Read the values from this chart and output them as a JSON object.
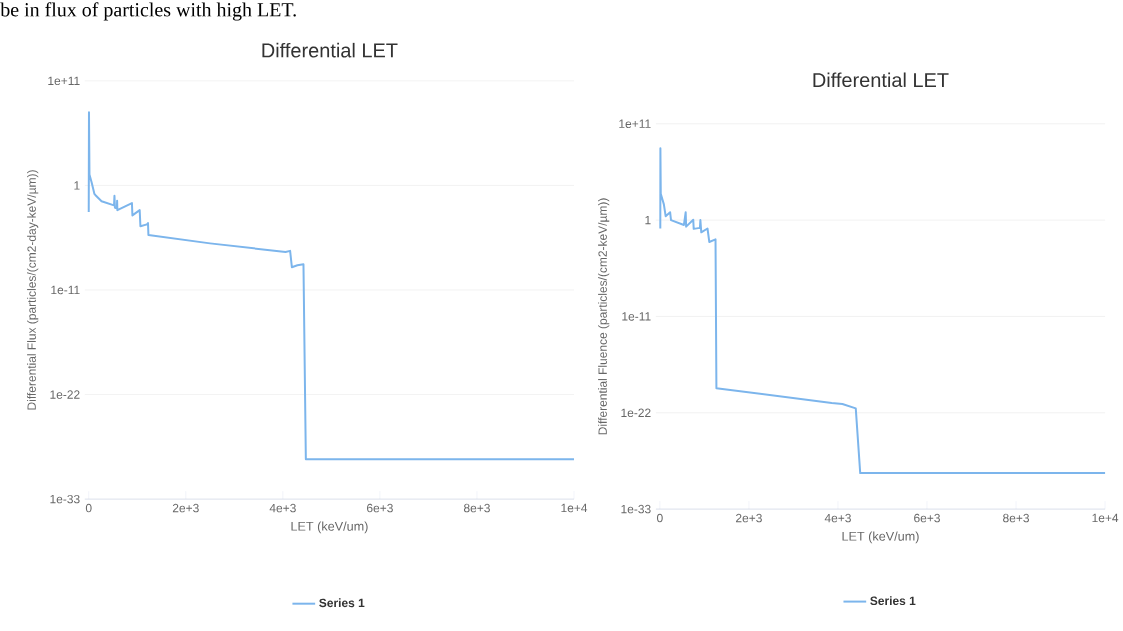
{
  "chart_data": [
    {
      "type": "line",
      "title": "Differential LET",
      "xlabel": "LET (keV/um)",
      "ylabel": "Differential Flux (particles/(cm2-day-keV/µm))",
      "log": "y",
      "grid": "y",
      "legend": "bottom",
      "marker": "none",
      "annotations": [
        "be in flux of particles with high LET."
      ],
      "xlim": [
        -80,
        10000
      ],
      "ylim": [
        1e-33,
        100000000000.0
      ],
      "xticks": [
        0,
        {
          "value": 2000,
          "label": "2e+3"
        },
        {
          "value": 4000,
          "label": "4e+3"
        },
        {
          "value": 6000,
          "label": "6e+3"
        },
        {
          "value": 8000,
          "label": "8e+3"
        },
        {
          "value": 10000,
          "label": "1e+4"
        }
      ],
      "yticks": [
        {
          "value": 1e-33,
          "label": "1e-33"
        },
        {
          "value": 1e-22,
          "label": "1e-22"
        },
        {
          "value": 1e-11,
          "label": "1e-11"
        },
        1,
        {
          "value": 100000000000.0,
          "label": "1e+11"
        }
      ],
      "x": [
        0,
        5,
        15,
        60,
        116,
        135,
        264,
        521,
        530,
        540,
        580,
        585,
        590,
        890,
        900,
        1050,
        1065,
        1200,
        1221,
        1230,
        2500,
        4056,
        4150,
        4186,
        4300,
        4425,
        4474,
        10000
      ],
      "series": [
        {
          "name": "Series 1",
          "color": "#7cb5ec",
          "values": [
            0.0016,
            50000000.0,
            14,
            2,
            0.13,
            0.1,
            0.022,
            0.008,
            0.08,
            0.0045,
            0.004,
            0.025,
            0.0025,
            0.014,
            0.0007,
            0.0025,
            5e-05,
            8e-05,
            0.00011,
            6e-06,
            8e-07,
            1e-07,
            1.3e-07,
            2.5e-09,
            4e-09,
            5e-09,
            1.6e-29,
            1.6e-29
          ]
        }
      ]
    },
    {
      "type": "line",
      "title": "Differential LET",
      "xlabel": "LET (keV/um)",
      "ylabel": "Differential Fluence (particles/(cm2-keV/µm))",
      "log": "y",
      "grid": "y",
      "legend": "bottom",
      "marker": "none",
      "xlim": [
        -90,
        10000
      ],
      "ylim": [
        1e-33,
        100000000000.0
      ],
      "xticks": [
        0,
        {
          "value": 2000,
          "label": "2e+3"
        },
        {
          "value": 4000,
          "label": "4e+3"
        },
        {
          "value": 6000,
          "label": "6e+3"
        },
        {
          "value": 8000,
          "label": "8e+3"
        },
        {
          "value": 10000,
          "label": "1e+4"
        }
      ],
      "yticks": [
        {
          "value": 1e-33,
          "label": "1e-33"
        },
        {
          "value": 1e-22,
          "label": "1e-22"
        },
        {
          "value": 1e-11,
          "label": "1e-11"
        },
        1,
        {
          "value": 100000000000.0,
          "label": "1e+11"
        }
      ],
      "x": [
        10,
        12,
        20,
        90,
        130,
        230,
        250,
        540,
        580,
        590,
        750,
        760,
        900,
        910,
        930,
        1070,
        1110,
        1250,
        1270,
        3860,
        4100,
        4400,
        4500,
        10000
      ],
      "series": [
        {
          "name": "Series 1",
          "color": "#7cb5ec",
          "values": [
            0.11,
            160000000.0,
            1000,
            63,
            2.8,
            8,
            1,
            0.28,
            8,
            0.18,
            1.1,
            0.1,
            0.13,
            1,
            0.04,
            0.11,
            0.0032,
            0.0063,
            6.3e-20,
            1.3e-21,
            1e-21,
            3.2e-22,
            1.3e-29,
            1.3e-29
          ]
        }
      ]
    }
  ]
}
